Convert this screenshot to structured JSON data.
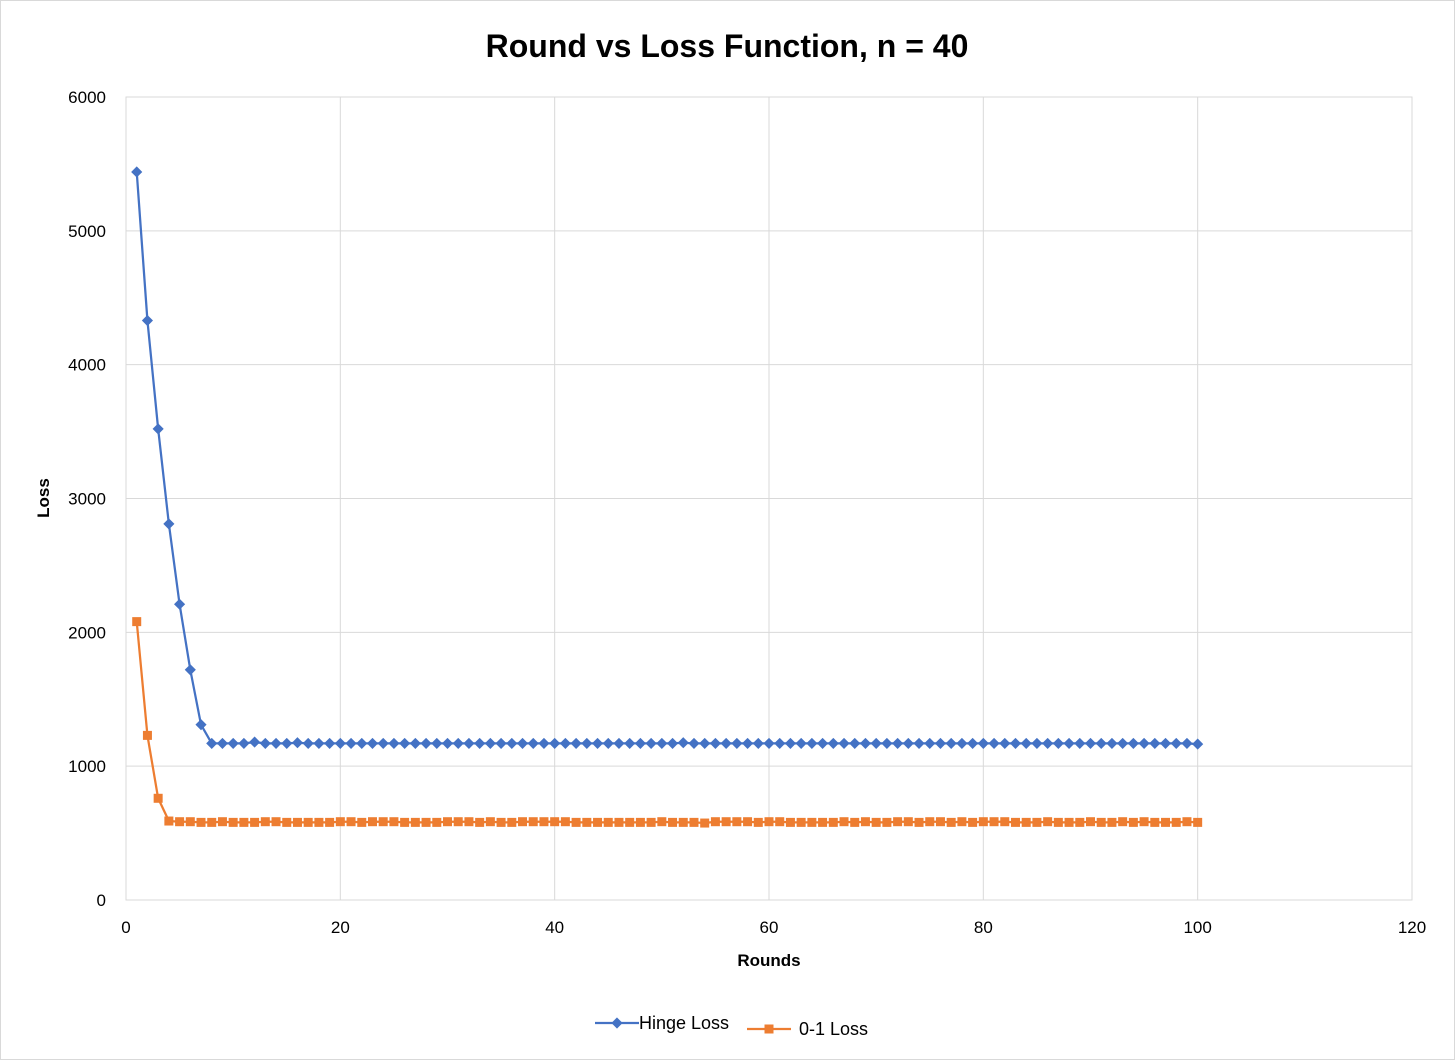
{
  "chart_data": {
    "type": "line",
    "title": "Round vs Loss Function, n = 40",
    "xlabel": "Rounds",
    "ylabel": "Loss",
    "xlim": [
      0,
      120
    ],
    "ylim": [
      0,
      6000
    ],
    "x_ticks": [
      0,
      20,
      40,
      60,
      80,
      100,
      120
    ],
    "y_ticks": [
      0,
      1000,
      2000,
      3000,
      4000,
      5000,
      6000
    ],
    "x_tick_labels": [
      "0",
      "20",
      "40",
      "60",
      "80",
      "100",
      "120"
    ],
    "y_tick_labels": [
      "0",
      "1000",
      "2000",
      "3000",
      "4000",
      "5000",
      "6000"
    ],
    "grid": true,
    "legend_position": "bottom",
    "series": [
      {
        "name": "Hinge Loss",
        "color": "#4472c4",
        "marker": "diamond",
        "x": [
          1,
          2,
          3,
          4,
          5,
          6,
          7,
          8,
          9,
          10,
          11,
          12,
          13,
          14,
          15,
          16,
          17,
          18,
          19,
          20,
          21,
          22,
          23,
          24,
          25,
          26,
          27,
          28,
          29,
          30,
          31,
          32,
          33,
          34,
          35,
          36,
          37,
          38,
          39,
          40,
          41,
          42,
          43,
          44,
          45,
          46,
          47,
          48,
          49,
          50,
          51,
          52,
          53,
          54,
          55,
          56,
          57,
          58,
          59,
          60,
          61,
          62,
          63,
          64,
          65,
          66,
          67,
          68,
          69,
          70,
          71,
          72,
          73,
          74,
          75,
          76,
          77,
          78,
          79,
          80,
          81,
          82,
          83,
          84,
          85,
          86,
          87,
          88,
          89,
          90,
          91,
          92,
          93,
          94,
          95,
          96,
          97,
          98,
          99,
          100
        ],
        "values": [
          5440,
          4330,
          3520,
          2810,
          2210,
          1720,
          1310,
          1170,
          1170,
          1170,
          1170,
          1180,
          1170,
          1170,
          1170,
          1175,
          1170,
          1170,
          1170,
          1170,
          1170,
          1170,
          1170,
          1170,
          1170,
          1170,
          1170,
          1170,
          1170,
          1170,
          1170,
          1170,
          1170,
          1170,
          1170,
          1170,
          1170,
          1170,
          1170,
          1170,
          1170,
          1170,
          1170,
          1170,
          1170,
          1170,
          1170,
          1170,
          1170,
          1170,
          1170,
          1175,
          1170,
          1170,
          1170,
          1170,
          1170,
          1170,
          1170,
          1170,
          1170,
          1170,
          1170,
          1170,
          1170,
          1170,
          1170,
          1170,
          1170,
          1170,
          1170,
          1170,
          1170,
          1170,
          1170,
          1170,
          1170,
          1170,
          1170,
          1170,
          1170,
          1170,
          1170,
          1170,
          1170,
          1170,
          1170,
          1170,
          1170,
          1170,
          1170,
          1170,
          1170,
          1170,
          1170,
          1170,
          1170,
          1170,
          1170,
          1165
        ]
      },
      {
        "name": "0-1 Loss",
        "color": "#ed7d31",
        "marker": "square",
        "x": [
          1,
          2,
          3,
          4,
          5,
          6,
          7,
          8,
          9,
          10,
          11,
          12,
          13,
          14,
          15,
          16,
          17,
          18,
          19,
          20,
          21,
          22,
          23,
          24,
          25,
          26,
          27,
          28,
          29,
          30,
          31,
          32,
          33,
          34,
          35,
          36,
          37,
          38,
          39,
          40,
          41,
          42,
          43,
          44,
          45,
          46,
          47,
          48,
          49,
          50,
          51,
          52,
          53,
          54,
          55,
          56,
          57,
          58,
          59,
          60,
          61,
          62,
          63,
          64,
          65,
          66,
          67,
          68,
          69,
          70,
          71,
          72,
          73,
          74,
          75,
          76,
          77,
          78,
          79,
          80,
          81,
          82,
          83,
          84,
          85,
          86,
          87,
          88,
          89,
          90,
          91,
          92,
          93,
          94,
          95,
          96,
          97,
          98,
          99,
          100
        ],
        "values": [
          2080,
          1230,
          760,
          590,
          585,
          585,
          580,
          580,
          585,
          580,
          580,
          580,
          585,
          585,
          580,
          580,
          580,
          580,
          580,
          585,
          585,
          580,
          585,
          585,
          585,
          580,
          580,
          580,
          580,
          585,
          585,
          585,
          580,
          585,
          580,
          580,
          585,
          585,
          585,
          585,
          585,
          580,
          580,
          580,
          580,
          580,
          580,
          580,
          580,
          585,
          580,
          580,
          580,
          575,
          585,
          585,
          585,
          585,
          580,
          585,
          585,
          580,
          580,
          580,
          580,
          580,
          585,
          580,
          585,
          580,
          580,
          585,
          585,
          580,
          585,
          585,
          580,
          585,
          580,
          585,
          585,
          585,
          580,
          580,
          580,
          585,
          580,
          580,
          580,
          585,
          580,
          580,
          585,
          580,
          585,
          580,
          580,
          580,
          585,
          580
        ]
      }
    ]
  }
}
